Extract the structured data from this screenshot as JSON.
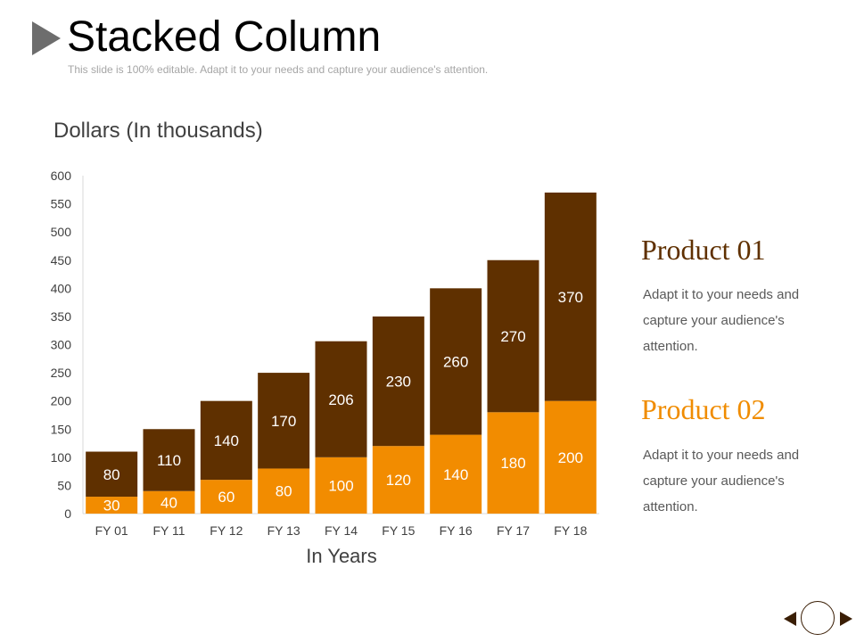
{
  "slide": {
    "title": "Stacked Column",
    "subtitle": "This slide is 100% editable. Adapt it to your needs and capture your audience's attention."
  },
  "chart_data": {
    "type": "bar",
    "stacked": true,
    "categories": [
      "FY 01",
      "FY 11",
      "FY 12",
      "FY 13",
      "FY 14",
      "FY 15",
      "FY 16",
      "FY 17",
      "FY 18"
    ],
    "series": [
      {
        "values": [
          30,
          40,
          60,
          80,
          100,
          120,
          140,
          180,
          200
        ],
        "color": "#f28c00"
      },
      {
        "values": [
          80,
          110,
          140,
          170,
          206,
          230,
          260,
          270,
          370
        ],
        "color": "#5f3000"
      }
    ],
    "ylabel": "Dollars (In thousands)",
    "xlabel": "In Years",
    "ylim": [
      0,
      600
    ],
    "yticks": [
      0,
      50,
      100,
      150,
      200,
      250,
      300,
      350,
      400,
      450,
      500,
      550,
      600
    ],
    "grid": false,
    "data_label_color": "#ffffff"
  },
  "products": [
    {
      "title": "Product 01",
      "description": "Adapt it to your needs and capture your audience's attention."
    },
    {
      "title": "Product 02",
      "description": "Adapt it to your needs and capture your audience's attention."
    }
  ],
  "colors": {
    "product_01": "#5f3000",
    "product_02": "#f28c00"
  },
  "nav": {
    "prev_icon": "triangle-left-icon",
    "home_icon": "circle-icon",
    "next_icon": "triangle-right-icon"
  }
}
